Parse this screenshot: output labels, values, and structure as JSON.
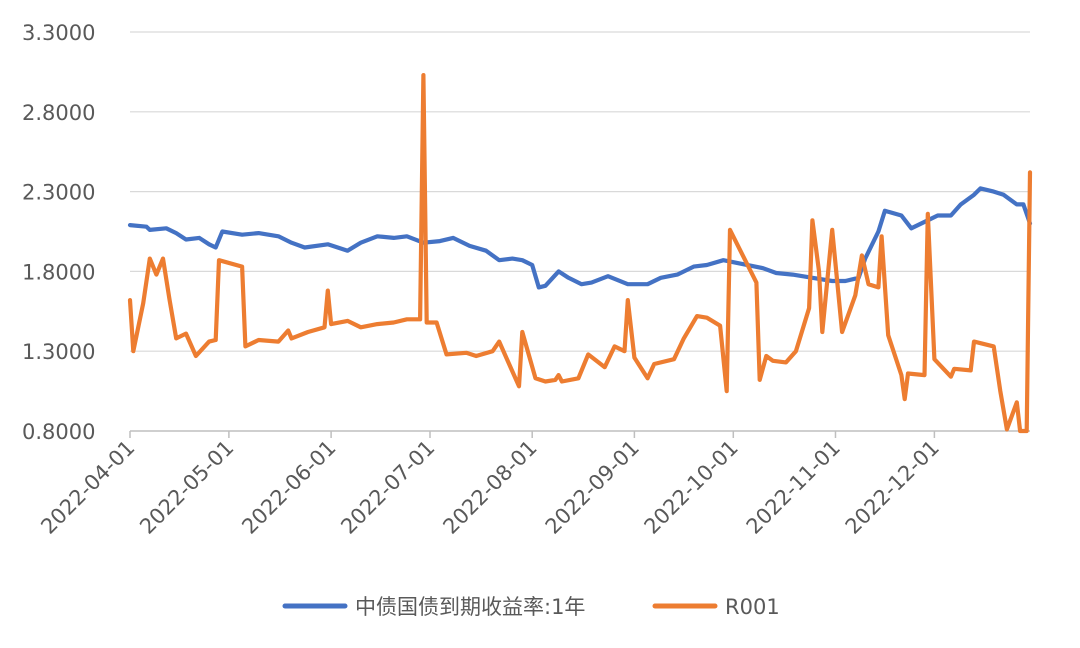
{
  "chart_data": {
    "type": "line",
    "title": "",
    "xlabel": "",
    "ylabel": "",
    "ylim": [
      0.8,
      3.3
    ],
    "y_ticks": [
      "3.3000",
      "2.8000",
      "2.3000",
      "1.8000",
      "1.3000",
      "0.8000"
    ],
    "x_ticks": [
      "2022-04-01",
      "2022-05-01",
      "2022-06-01",
      "2022-07-01",
      "2022-08-01",
      "2022-09-01",
      "2022-10-01",
      "2022-11-01",
      "2022-12-01"
    ],
    "x_range": [
      "2022-04-01",
      "2022-12-30"
    ],
    "grid": "horizontal",
    "legend_position": "bottom",
    "colors": {
      "series1": "#4472C4",
      "series2": "#ED7D31",
      "grid": "#D9D9D9",
      "axis": "#BFBFBF",
      "text": "#595959"
    },
    "series": [
      {
        "name": "中债国债到期收益率:1年",
        "color": "#4472C4",
        "points": [
          [
            "2022-04-01",
            2.09
          ],
          [
            "2022-04-06",
            2.08
          ],
          [
            "2022-04-07",
            2.06
          ],
          [
            "2022-04-12",
            2.07
          ],
          [
            "2022-04-15",
            2.04
          ],
          [
            "2022-04-18",
            2.0
          ],
          [
            "2022-04-22",
            2.01
          ],
          [
            "2022-04-25",
            1.97
          ],
          [
            "2022-04-27",
            1.95
          ],
          [
            "2022-04-29",
            2.05
          ],
          [
            "2022-05-05",
            2.03
          ],
          [
            "2022-05-10",
            2.04
          ],
          [
            "2022-05-16",
            2.02
          ],
          [
            "2022-05-20",
            1.98
          ],
          [
            "2022-05-24",
            1.95
          ],
          [
            "2022-05-31",
            1.97
          ],
          [
            "2022-06-06",
            1.93
          ],
          [
            "2022-06-10",
            1.98
          ],
          [
            "2022-06-15",
            2.02
          ],
          [
            "2022-06-20",
            2.01
          ],
          [
            "2022-06-24",
            2.02
          ],
          [
            "2022-06-29",
            1.98
          ],
          [
            "2022-07-04",
            1.99
          ],
          [
            "2022-07-08",
            2.01
          ],
          [
            "2022-07-13",
            1.96
          ],
          [
            "2022-07-18",
            1.93
          ],
          [
            "2022-07-22",
            1.87
          ],
          [
            "2022-07-26",
            1.88
          ],
          [
            "2022-07-29",
            1.87
          ],
          [
            "2022-08-01",
            1.84
          ],
          [
            "2022-08-03",
            1.7
          ],
          [
            "2022-08-05",
            1.71
          ],
          [
            "2022-08-09",
            1.8
          ],
          [
            "2022-08-12",
            1.76
          ],
          [
            "2022-08-16",
            1.72
          ],
          [
            "2022-08-19",
            1.73
          ],
          [
            "2022-08-24",
            1.77
          ],
          [
            "2022-08-30",
            1.72
          ],
          [
            "2022-09-05",
            1.72
          ],
          [
            "2022-09-09",
            1.76
          ],
          [
            "2022-09-14",
            1.78
          ],
          [
            "2022-09-19",
            1.83
          ],
          [
            "2022-09-23",
            1.84
          ],
          [
            "2022-09-28",
            1.87
          ],
          [
            "2022-10-10",
            1.82
          ],
          [
            "2022-10-14",
            1.79
          ],
          [
            "2022-10-19",
            1.78
          ],
          [
            "2022-10-25",
            1.76
          ],
          [
            "2022-10-31",
            1.74
          ],
          [
            "2022-11-04",
            1.74
          ],
          [
            "2022-11-08",
            1.76
          ],
          [
            "2022-11-10",
            1.88
          ],
          [
            "2022-11-14",
            2.05
          ],
          [
            "2022-11-16",
            2.18
          ],
          [
            "2022-11-21",
            2.15
          ],
          [
            "2022-11-24",
            2.07
          ],
          [
            "2022-11-29",
            2.12
          ],
          [
            "2022-12-02",
            2.15
          ],
          [
            "2022-12-06",
            2.15
          ],
          [
            "2022-12-09",
            2.22
          ],
          [
            "2022-12-13",
            2.28
          ],
          [
            "2022-12-15",
            2.32
          ],
          [
            "2022-12-19",
            2.3
          ],
          [
            "2022-12-22",
            2.28
          ],
          [
            "2022-12-26",
            2.22
          ],
          [
            "2022-12-28",
            2.22
          ],
          [
            "2022-12-30",
            2.1
          ]
        ]
      },
      {
        "name": "R001",
        "color": "#ED7D31",
        "points": [
          [
            "2022-04-01",
            1.62
          ],
          [
            "2022-04-02",
            1.3
          ],
          [
            "2022-04-05",
            1.6
          ],
          [
            "2022-04-07",
            1.88
          ],
          [
            "2022-04-09",
            1.78
          ],
          [
            "2022-04-11",
            1.88
          ],
          [
            "2022-04-13",
            1.62
          ],
          [
            "2022-04-15",
            1.38
          ],
          [
            "2022-04-18",
            1.41
          ],
          [
            "2022-04-21",
            1.27
          ],
          [
            "2022-04-25",
            1.36
          ],
          [
            "2022-04-27",
            1.37
          ],
          [
            "2022-04-28",
            1.87
          ],
          [
            "2022-05-05",
            1.83
          ],
          [
            "2022-05-06",
            1.33
          ],
          [
            "2022-05-10",
            1.37
          ],
          [
            "2022-05-16",
            1.36
          ],
          [
            "2022-05-19",
            1.43
          ],
          [
            "2022-05-20",
            1.38
          ],
          [
            "2022-05-25",
            1.42
          ],
          [
            "2022-05-30",
            1.45
          ],
          [
            "2022-05-31",
            1.68
          ],
          [
            "2022-06-01",
            1.47
          ],
          [
            "2022-06-06",
            1.49
          ],
          [
            "2022-06-10",
            1.45
          ],
          [
            "2022-06-15",
            1.47
          ],
          [
            "2022-06-20",
            1.48
          ],
          [
            "2022-06-24",
            1.5
          ],
          [
            "2022-06-28",
            1.5
          ],
          [
            "2022-06-29",
            3.03
          ],
          [
            "2022-06-30",
            1.48
          ],
          [
            "2022-07-03",
            1.48
          ],
          [
            "2022-07-06",
            1.28
          ],
          [
            "2022-07-12",
            1.29
          ],
          [
            "2022-07-15",
            1.27
          ],
          [
            "2022-07-20",
            1.3
          ],
          [
            "2022-07-22",
            1.36
          ],
          [
            "2022-07-25",
            1.22
          ],
          [
            "2022-07-28",
            1.08
          ],
          [
            "2022-07-29",
            1.42
          ],
          [
            "2022-08-02",
            1.13
          ],
          [
            "2022-08-05",
            1.11
          ],
          [
            "2022-08-08",
            1.12
          ],
          [
            "2022-08-09",
            1.15
          ],
          [
            "2022-08-10",
            1.11
          ],
          [
            "2022-08-15",
            1.13
          ],
          [
            "2022-08-18",
            1.28
          ],
          [
            "2022-08-23",
            1.2
          ],
          [
            "2022-08-26",
            1.33
          ],
          [
            "2022-08-29",
            1.3
          ],
          [
            "2022-08-30",
            1.62
          ],
          [
            "2022-09-01",
            1.26
          ],
          [
            "2022-09-05",
            1.13
          ],
          [
            "2022-09-07",
            1.22
          ],
          [
            "2022-09-13",
            1.25
          ],
          [
            "2022-09-16",
            1.38
          ],
          [
            "2022-09-20",
            1.52
          ],
          [
            "2022-09-23",
            1.51
          ],
          [
            "2022-09-27",
            1.46
          ],
          [
            "2022-09-29",
            1.05
          ],
          [
            "2022-09-30",
            2.06
          ],
          [
            "2022-10-08",
            1.73
          ],
          [
            "2022-10-09",
            1.12
          ],
          [
            "2022-10-11",
            1.27
          ],
          [
            "2022-10-13",
            1.24
          ],
          [
            "2022-10-17",
            1.23
          ],
          [
            "2022-10-20",
            1.3
          ],
          [
            "2022-10-24",
            1.57
          ],
          [
            "2022-10-25",
            2.12
          ],
          [
            "2022-10-27",
            1.8
          ],
          [
            "2022-10-28",
            1.42
          ],
          [
            "2022-10-31",
            2.06
          ],
          [
            "2022-11-03",
            1.42
          ],
          [
            "2022-11-07",
            1.65
          ],
          [
            "2022-11-09",
            1.9
          ],
          [
            "2022-11-11",
            1.72
          ],
          [
            "2022-11-14",
            1.7
          ],
          [
            "2022-11-15",
            2.02
          ],
          [
            "2022-11-17",
            1.4
          ],
          [
            "2022-11-21",
            1.15
          ],
          [
            "2022-11-22",
            1.0
          ],
          [
            "2022-11-23",
            1.16
          ],
          [
            "2022-11-28",
            1.15
          ],
          [
            "2022-11-29",
            2.16
          ],
          [
            "2022-12-01",
            1.25
          ],
          [
            "2022-12-06",
            1.14
          ],
          [
            "2022-12-07",
            1.19
          ],
          [
            "2022-12-12",
            1.18
          ],
          [
            "2022-12-13",
            1.36
          ],
          [
            "2022-12-19",
            1.33
          ],
          [
            "2022-12-21",
            1.05
          ],
          [
            "2022-12-23",
            0.81
          ],
          [
            "2022-12-26",
            0.98
          ],
          [
            "2022-12-27",
            0.8
          ],
          [
            "2022-12-29",
            0.8
          ],
          [
            "2022-12-30",
            2.42
          ]
        ]
      }
    ]
  }
}
